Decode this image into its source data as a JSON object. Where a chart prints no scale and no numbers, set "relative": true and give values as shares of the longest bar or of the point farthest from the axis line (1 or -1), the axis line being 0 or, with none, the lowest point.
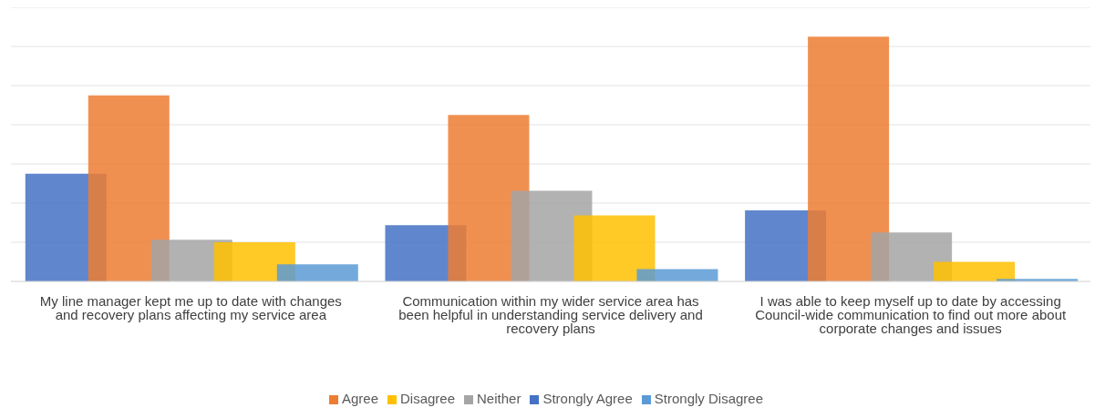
{
  "chart_data": {
    "type": "bar",
    "relative": true,
    "grid": "y",
    "legend": "bottom",
    "categories": [
      "My line manager kept me up to date with changes and recovery plans affecting my service area",
      "Communication  within my wider service area has been helpful in understanding  service delivery and recovery plans",
      "I was able to keep myself up to date by accessing Council-wide communication to find out more about corporate changes and issues"
    ],
    "series": [
      {
        "name": "Strongly Agree",
        "color": "#4472c4",
        "values": [
          0.44,
          0.23,
          0.29
        ]
      },
      {
        "name": "Agree",
        "color": "#ed7d31",
        "values": [
          0.76,
          0.68,
          1
        ]
      },
      {
        "name": "Neither",
        "color": "#a5a5a5",
        "values": [
          0.17,
          0.37,
          0.2
        ]
      },
      {
        "name": "Disagree",
        "color": "#ffc000",
        "values": [
          0.16,
          0.27,
          0.08
        ]
      },
      {
        "name": "Strongly Disagree",
        "color": "#5b9bd5",
        "values": [
          0.07,
          0.05,
          0.01
        ]
      }
    ]
  }
}
